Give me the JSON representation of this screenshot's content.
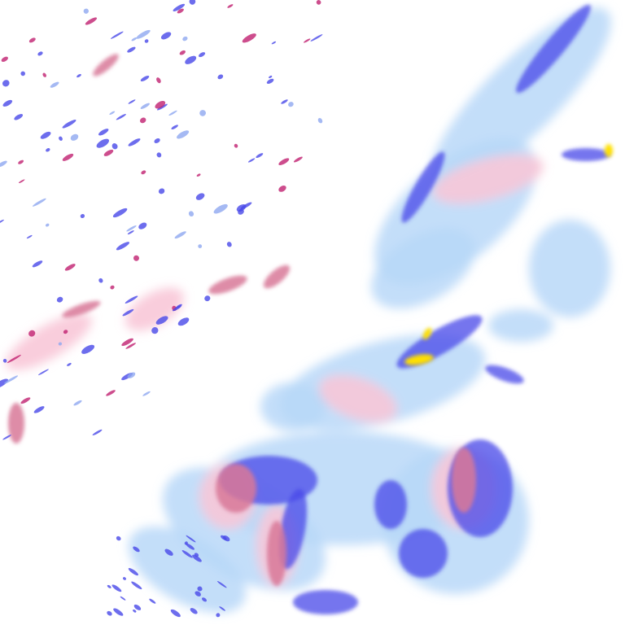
{
  "map": {
    "type": "precipitation-radar-tile",
    "colors": {
      "background": "#ffffff",
      "rain_light": "#b8d8f8",
      "rain_moderate": "#8fa8f0",
      "rain_heavy": "#4848e8",
      "rain_intense": "#ffe000",
      "mixed_light": "#f8c8d8",
      "mixed_moderate": "#d87898",
      "mixed_heavy": "#c02070"
    }
  }
}
